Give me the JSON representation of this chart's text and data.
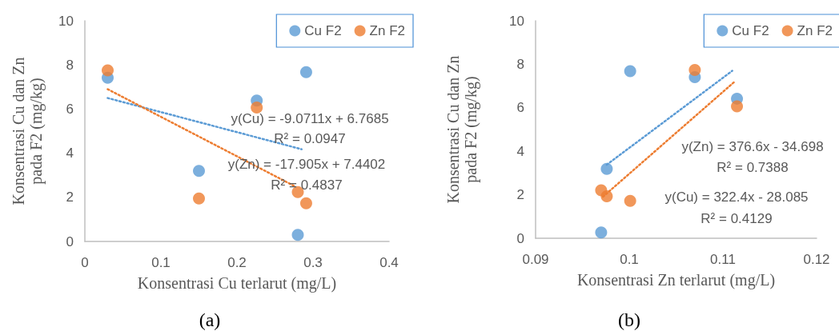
{
  "chart_data": [
    {
      "type": "scatter",
      "xlabel": "Konsentrasi Cu terlarut (mg/L)",
      "ylabel": "Konsentrasi Cu dan Zn\npada F2 (mg/kg)",
      "xlim": [
        0,
        0.4
      ],
      "xticks": [
        0,
        0.1,
        0.2,
        0.3,
        0.4
      ],
      "ylim": [
        0,
        10
      ],
      "yticks": [
        0,
        2,
        4,
        6,
        8,
        10
      ],
      "grid": false,
      "legend": "top right",
      "marker": "circle",
      "series": [
        {
          "name": "Cu F2",
          "color": "#5b9bd5",
          "x": [
            0.03,
            0.15,
            0.226,
            0.28,
            0.291
          ],
          "values": [
            7.42,
            3.2,
            6.39,
            0.3,
            7.67
          ]
        },
        {
          "name": "Zn F2",
          "color": "#ed7d31",
          "x": [
            0.03,
            0.15,
            0.226,
            0.28,
            0.291
          ],
          "values": [
            7.75,
            1.95,
            6.07,
            2.24,
            1.73
          ]
        },
        {
          "type": "line",
          "color": "#5b9bd5",
          "line_style": "dotted",
          "marker": "none",
          "x": [
            0.03,
            0.285
          ],
          "values": [
            6.5,
            4.18
          ]
        },
        {
          "type": "line",
          "color": "#ed7d31",
          "line_style": "dotted",
          "marker": "none",
          "x": [
            0.03,
            0.276
          ],
          "values": [
            6.9,
            2.5
          ]
        }
      ],
      "annotations": [
        "y(Cu) = -9.0711x + 6.7685",
        "R² = 0.0947",
        "y(Zn) = -17.905x + 7.4402",
        "R² = 0.4837",
        "(a)"
      ]
    },
    {
      "type": "scatter",
      "xlabel": "Konsentrasi Zn terlarut (mg/L)",
      "ylabel": "Konsentrasi Cu dan Zn\npada F2 (mg/kg)",
      "xlim": [
        0.09,
        0.12
      ],
      "xticks": [
        0.09,
        0.1,
        0.11,
        0.12
      ],
      "ylim": [
        0,
        10
      ],
      "yticks": [
        0,
        2,
        4,
        6,
        8,
        10
      ],
      "grid": false,
      "legend": "top right",
      "marker": "circle",
      "series": [
        {
          "name": "Cu F2",
          "color": "#5b9bd5",
          "x": [
            0.097,
            0.0976,
            0.1001,
            0.107,
            0.1115
          ],
          "values": [
            0.27,
            3.19,
            7.68,
            7.41,
            6.42
          ]
        },
        {
          "name": "Zn F2",
          "color": "#ed7d31",
          "x": [
            0.097,
            0.0976,
            0.1001,
            0.107,
            0.1115
          ],
          "values": [
            2.21,
            1.93,
            1.72,
            7.74,
            6.07
          ]
        },
        {
          "type": "line",
          "color": "#5b9bd5",
          "line_style": "dotted",
          "marker": "none",
          "x": [
            0.0976,
            0.111
          ],
          "values": [
            3.38,
            7.7
          ]
        },
        {
          "type": "line",
          "color": "#ed7d31",
          "line_style": "dotted",
          "marker": "none",
          "x": [
            0.0972,
            0.1113
          ],
          "values": [
            1.91,
            7.22
          ]
        }
      ],
      "annotations": [
        "y(Zn) = 376.6x - 34.698",
        "R² = 0.7388",
        "y(Cu) = 322.4x - 28.085",
        "R² = 0.4129",
        "(b)"
      ]
    }
  ]
}
